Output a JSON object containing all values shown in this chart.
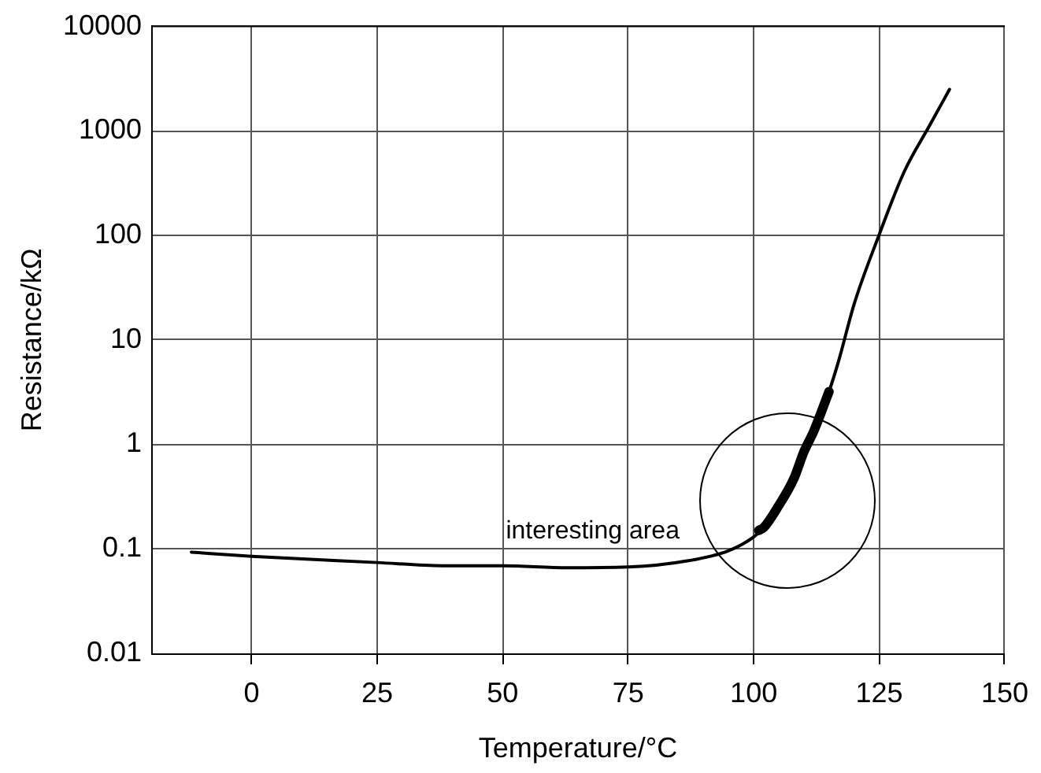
{
  "chart_data": {
    "type": "line",
    "xlabel": "Temperature/°C",
    "ylabel": "Resistance/kΩ",
    "xlim": [
      -20,
      150
    ],
    "xticks": [
      0,
      25,
      50,
      75,
      100,
      125,
      150
    ],
    "ylim": [
      0.01,
      10000
    ],
    "yticks": [
      0.01,
      0.1,
      1,
      10,
      100,
      1000,
      10000
    ],
    "log": "y",
    "grid": true,
    "legend": false,
    "marker": "none",
    "line_style": "solid",
    "series": [
      {
        "color": "#000000",
        "x": [
          -12,
          0,
          25,
          38,
          50,
          63,
          75,
          87,
          95,
          100,
          102,
          105,
          108,
          110,
          112,
          115,
          117,
          120,
          125,
          130,
          135,
          139
        ],
        "values": [
          0.093,
          0.085,
          0.074,
          0.069,
          0.069,
          0.066,
          0.067,
          0.077,
          0.096,
          0.13,
          0.16,
          0.26,
          0.47,
          0.85,
          1.35,
          3.2,
          6.5,
          22,
          102,
          410,
          1120,
          2500
        ]
      },
      {
        "color": "#000000",
        "x": [
          101,
          102,
          105,
          108,
          110,
          112,
          115
        ],
        "values": [
          0.15,
          0.16,
          0.26,
          0.47,
          0.85,
          1.35,
          3.2
        ]
      }
    ],
    "annotations": [
      "interesting area"
    ]
  }
}
